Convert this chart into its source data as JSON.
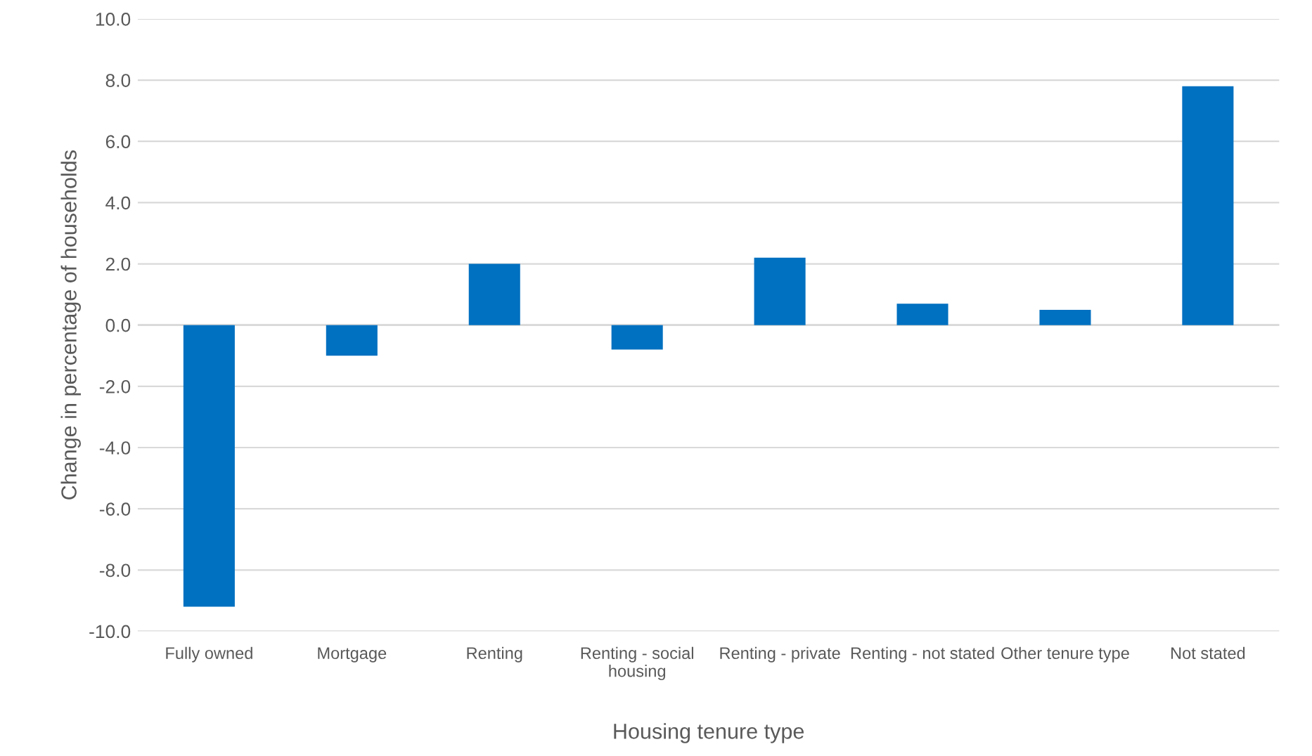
{
  "chart_data": {
    "type": "bar",
    "xlabel": "Housing tenure type",
    "ylabel": "Change in percentage of households",
    "categories": [
      "Fully owned",
      "Mortgage",
      "Renting",
      "Renting - social housing",
      "Renting - private",
      "Renting - not stated",
      "Other tenure type",
      "Not stated"
    ],
    "values": [
      -9.2,
      -1.0,
      2.0,
      -0.8,
      2.2,
      0.7,
      0.5,
      7.8
    ],
    "color": "#0070c0",
    "ylim": [
      -10,
      10
    ],
    "yticks": [
      {
        "value": -10,
        "label": "-10.0"
      },
      {
        "value": -8,
        "label": "-8.0"
      },
      {
        "value": -6,
        "label": "-6.0"
      },
      {
        "value": -4,
        "label": "-4.0"
      },
      {
        "value": -2,
        "label": "-2.0"
      },
      {
        "value": 0,
        "label": "0.0"
      },
      {
        "value": 2,
        "label": "2.0"
      },
      {
        "value": 4,
        "label": "4.0"
      },
      {
        "value": 6,
        "label": "6.0"
      },
      {
        "value": 8,
        "label": "8.0"
      },
      {
        "value": 10,
        "label": "10.0"
      }
    ],
    "grid": "y"
  }
}
